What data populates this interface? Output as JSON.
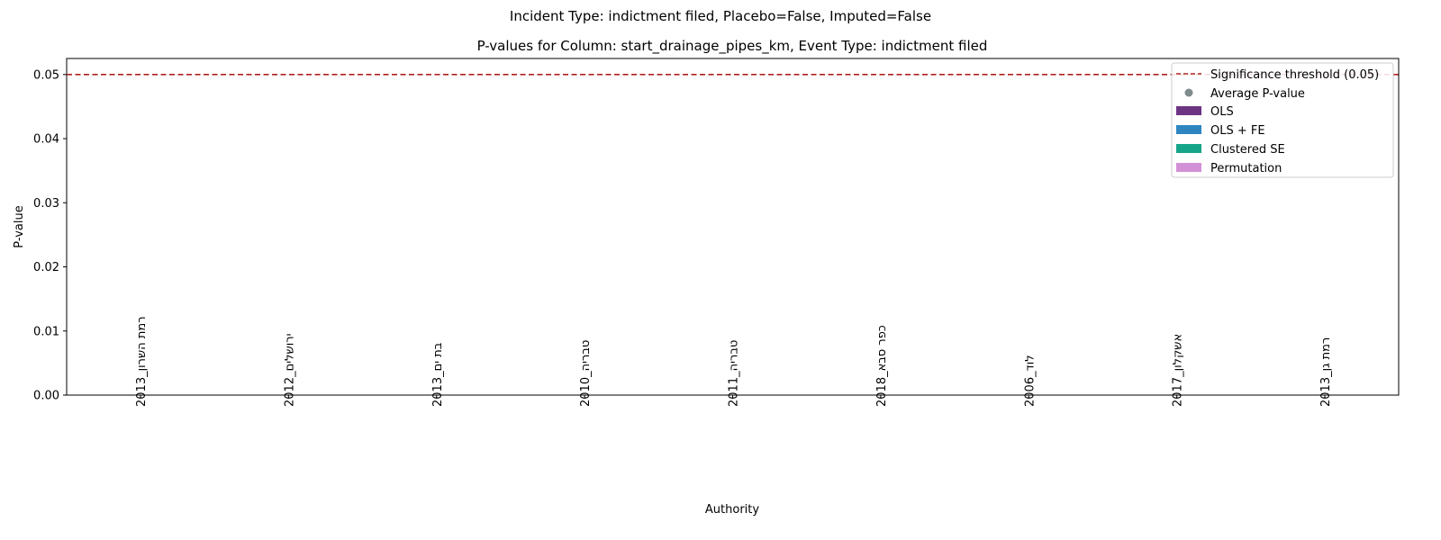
{
  "chart_data": {
    "type": "bar",
    "suptitle": "Incident Type: indictment filed, Placebo=False, Imputed=False",
    "title": "P-values for Column: start_drainage_pipes_km, Event Type: indictment filed",
    "xlabel": "Authority",
    "ylabel": "P-value",
    "ylim": [
      0,
      0.0525
    ],
    "yticks": [
      0.0,
      0.01,
      0.02,
      0.03,
      0.04,
      0.05
    ],
    "ytick_labels": [
      "0.00",
      "0.01",
      "0.02",
      "0.03",
      "0.04",
      "0.05"
    ],
    "categories": [
      "רמת השרון_2013",
      "ירושלים_2012",
      "בת ים_2013",
      "טבריה_2010",
      "טבריה_2011",
      "כפר סבא_2018",
      "לוד_2006",
      "אשקלון_2017",
      "רמת גן_2013"
    ],
    "threshold": {
      "value": 0.05,
      "label": "Significance threshold (0.05)",
      "color": "#b22222"
    },
    "average_marker": {
      "label": "Average P-value",
      "color": "#7f8c8d"
    },
    "series": [
      {
        "name": "OLS",
        "color": "#6c3483",
        "values": [
          null,
          null,
          null,
          null,
          null,
          null,
          null,
          null,
          null
        ]
      },
      {
        "name": "OLS + FE",
        "color": "#2e86c1",
        "values": [
          null,
          null,
          null,
          null,
          null,
          null,
          null,
          null,
          null
        ]
      },
      {
        "name": "Clustered SE",
        "color": "#17a589",
        "values": [
          null,
          null,
          null,
          null,
          null,
          null,
          null,
          null,
          null
        ]
      },
      {
        "name": "Permutation",
        "color": "#d291d6",
        "values": [
          null,
          null,
          null,
          null,
          null,
          null,
          null,
          null,
          null
        ]
      }
    ],
    "grid": false,
    "legend_position": "top-right"
  }
}
